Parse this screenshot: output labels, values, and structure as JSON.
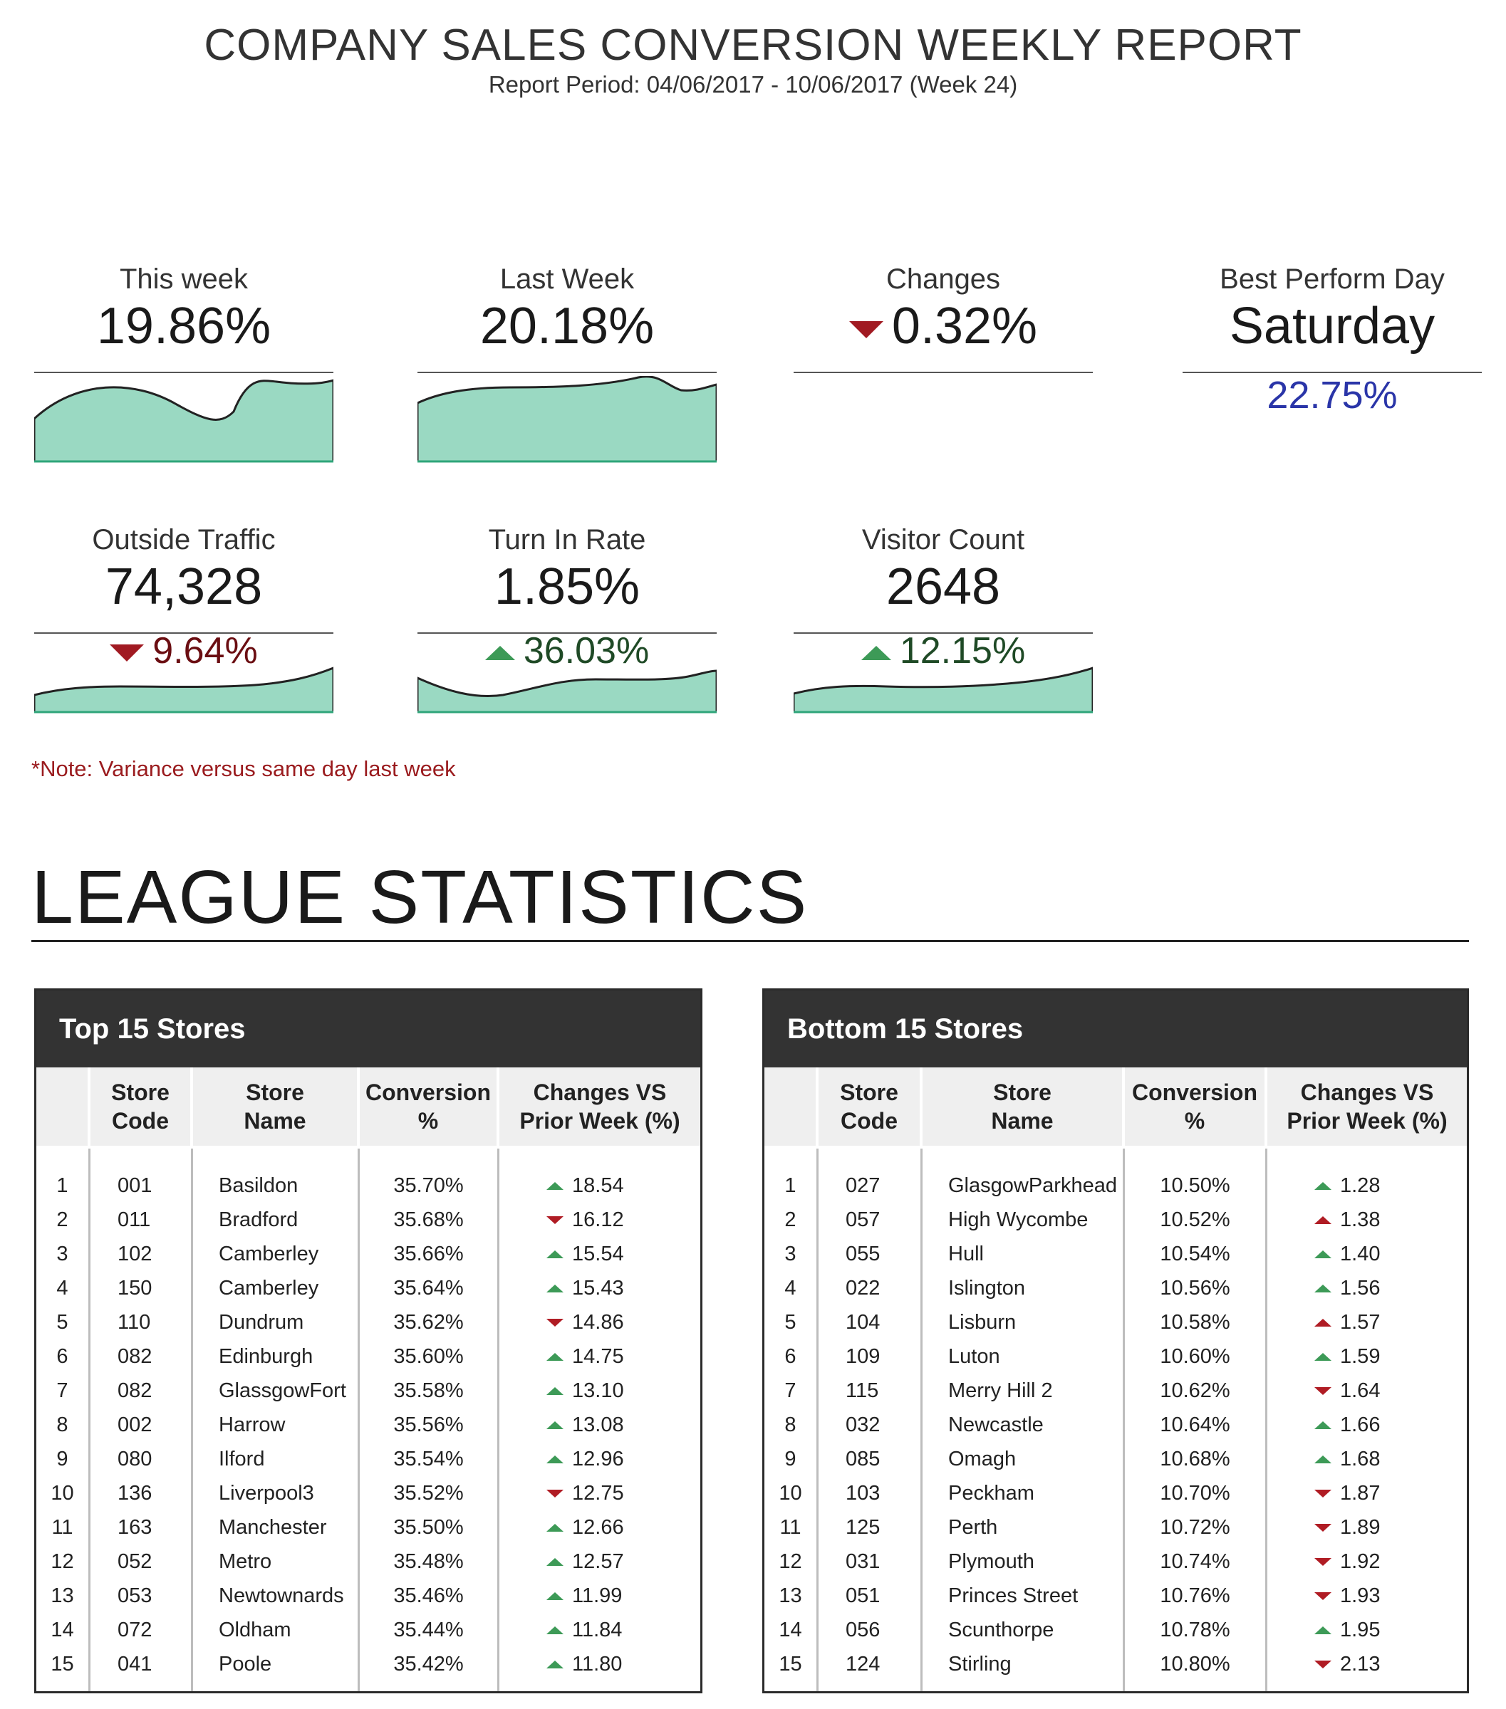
{
  "header": {
    "title": "COMPANY SALES CONVERSION WEEKLY REPORT",
    "period": "Report Period: 04/06/2017 - 10/06/2017 (Week 24)"
  },
  "kpis": {
    "this_week": {
      "label": "This week",
      "value": "19.86%"
    },
    "last_week": {
      "label": "Last Week",
      "value": "20.18%"
    },
    "changes": {
      "label": "Changes",
      "value": "0.32%",
      "direction": "down"
    },
    "best_day": {
      "label": "Best Perform Day",
      "value": "Saturday",
      "percent": "22.75%"
    },
    "outside_traffic": {
      "label": "Outside Traffic",
      "value": "74,328",
      "variance": "9.64%",
      "direction": "down"
    },
    "turn_in_rate": {
      "label": "Turn In Rate",
      "value": "1.85%",
      "variance": "36.03%",
      "direction": "up"
    },
    "visitor_count": {
      "label": "Visitor Count",
      "value": "2648",
      "variance": "12.15%",
      "direction": "up"
    }
  },
  "note": "*Note: Variance versus same day last week",
  "league": {
    "title": "LEAGUE STATISTICS",
    "columns": {
      "code_1": "Store",
      "code_2": "Code",
      "name_1": "Store",
      "name_2": "Name",
      "conv_1": "Conversion",
      "conv_2": "%",
      "chg_1": "Changes VS",
      "chg_2": "Prior Week (%)"
    },
    "top": {
      "title": "Top 15 Stores",
      "rows": [
        {
          "rank": "1",
          "code": "001",
          "name": "Basildon",
          "conversion": "35.70%",
          "change": "18.54",
          "trend": "up"
        },
        {
          "rank": "2",
          "code": "011",
          "name": "Bradford",
          "conversion": "35.68%",
          "change": "16.12",
          "trend": "down"
        },
        {
          "rank": "3",
          "code": "102",
          "name": "Camberley",
          "conversion": "35.66%",
          "change": "15.54",
          "trend": "up"
        },
        {
          "rank": "4",
          "code": "150",
          "name": "Camberley",
          "conversion": "35.64%",
          "change": "15.43",
          "trend": "up"
        },
        {
          "rank": "5",
          "code": "110",
          "name": "Dundrum",
          "conversion": "35.62%",
          "change": "14.86",
          "trend": "down"
        },
        {
          "rank": "6",
          "code": "082",
          "name": "Edinburgh",
          "conversion": "35.60%",
          "change": "14.75",
          "trend": "up"
        },
        {
          "rank": "7",
          "code": "082",
          "name": "GlassgowFort",
          "conversion": "35.58%",
          "change": "13.10",
          "trend": "up"
        },
        {
          "rank": "8",
          "code": "002",
          "name": "Harrow",
          "conversion": "35.56%",
          "change": "13.08",
          "trend": "up"
        },
        {
          "rank": "9",
          "code": "080",
          "name": "Ilford",
          "conversion": "35.54%",
          "change": "12.96",
          "trend": "up"
        },
        {
          "rank": "10",
          "code": "136",
          "name": "Liverpool3",
          "conversion": "35.52%",
          "change": "12.75",
          "trend": "down"
        },
        {
          "rank": "11",
          "code": "163",
          "name": "Manchester",
          "conversion": "35.50%",
          "change": "12.66",
          "trend": "up"
        },
        {
          "rank": "12",
          "code": "052",
          "name": "Metro",
          "conversion": "35.48%",
          "change": "12.57",
          "trend": "up"
        },
        {
          "rank": "13",
          "code": "053",
          "name": "Newtownards",
          "conversion": "35.46%",
          "change": "11.99",
          "trend": "up"
        },
        {
          "rank": "14",
          "code": "072",
          "name": "Oldham",
          "conversion": "35.44%",
          "change": "11.84",
          "trend": "up"
        },
        {
          "rank": "15",
          "code": "041",
          "name": "Poole",
          "conversion": "35.42%",
          "change": "11.80",
          "trend": "up"
        }
      ]
    },
    "bottom": {
      "title": "Bottom 15 Stores",
      "rows": [
        {
          "rank": "1",
          "code": "027",
          "name": "GlasgowParkhead",
          "conversion": "10.50%",
          "change": "1.28",
          "trend": "up"
        },
        {
          "rank": "2",
          "code": "057",
          "name": "High Wycombe",
          "conversion": "10.52%",
          "change": "1.38",
          "trend": "up-red"
        },
        {
          "rank": "3",
          "code": "055",
          "name": "Hull",
          "conversion": "10.54%",
          "change": "1.40",
          "trend": "up"
        },
        {
          "rank": "4",
          "code": "022",
          "name": "Islington",
          "conversion": "10.56%",
          "change": "1.56",
          "trend": "up"
        },
        {
          "rank": "5",
          "code": "104",
          "name": "Lisburn",
          "conversion": "10.58%",
          "change": "1.57",
          "trend": "up-red"
        },
        {
          "rank": "6",
          "code": "109",
          "name": "Luton",
          "conversion": "10.60%",
          "change": "1.59",
          "trend": "up"
        },
        {
          "rank": "7",
          "code": "115",
          "name": "Merry Hill 2",
          "conversion": "10.62%",
          "change": "1.64",
          "trend": "down"
        },
        {
          "rank": "8",
          "code": "032",
          "name": "Newcastle",
          "conversion": "10.64%",
          "change": "1.66",
          "trend": "up"
        },
        {
          "rank": "9",
          "code": "085",
          "name": "Omagh",
          "conversion": "10.68%",
          "change": "1.68",
          "trend": "up"
        },
        {
          "rank": "10",
          "code": "103",
          "name": "Peckham",
          "conversion": "10.70%",
          "change": "1.87",
          "trend": "down"
        },
        {
          "rank": "11",
          "code": "125",
          "name": "Perth",
          "conversion": "10.72%",
          "change": "1.89",
          "trend": "down"
        },
        {
          "rank": "12",
          "code": "031",
          "name": "Plymouth",
          "conversion": "10.74%",
          "change": "1.92",
          "trend": "down"
        },
        {
          "rank": "13",
          "code": "051",
          "name": "Princes Street",
          "conversion": "10.76%",
          "change": "1.93",
          "trend": "down"
        },
        {
          "rank": "14",
          "code": "056",
          "name": "Scunthorpe",
          "conversion": "10.78%",
          "change": "1.95",
          "trend": "up"
        },
        {
          "rank": "15",
          "code": "124",
          "name": "Stirling",
          "conversion": "10.80%",
          "change": "2.13",
          "trend": "down"
        }
      ]
    }
  },
  "colors": {
    "spark_fill": "#9ad9c2",
    "down": "#a11a22",
    "up": "#3d9a57",
    "best_percent": "#2a35a8",
    "note": "#9a1b1e",
    "panel_header": "#333333"
  }
}
